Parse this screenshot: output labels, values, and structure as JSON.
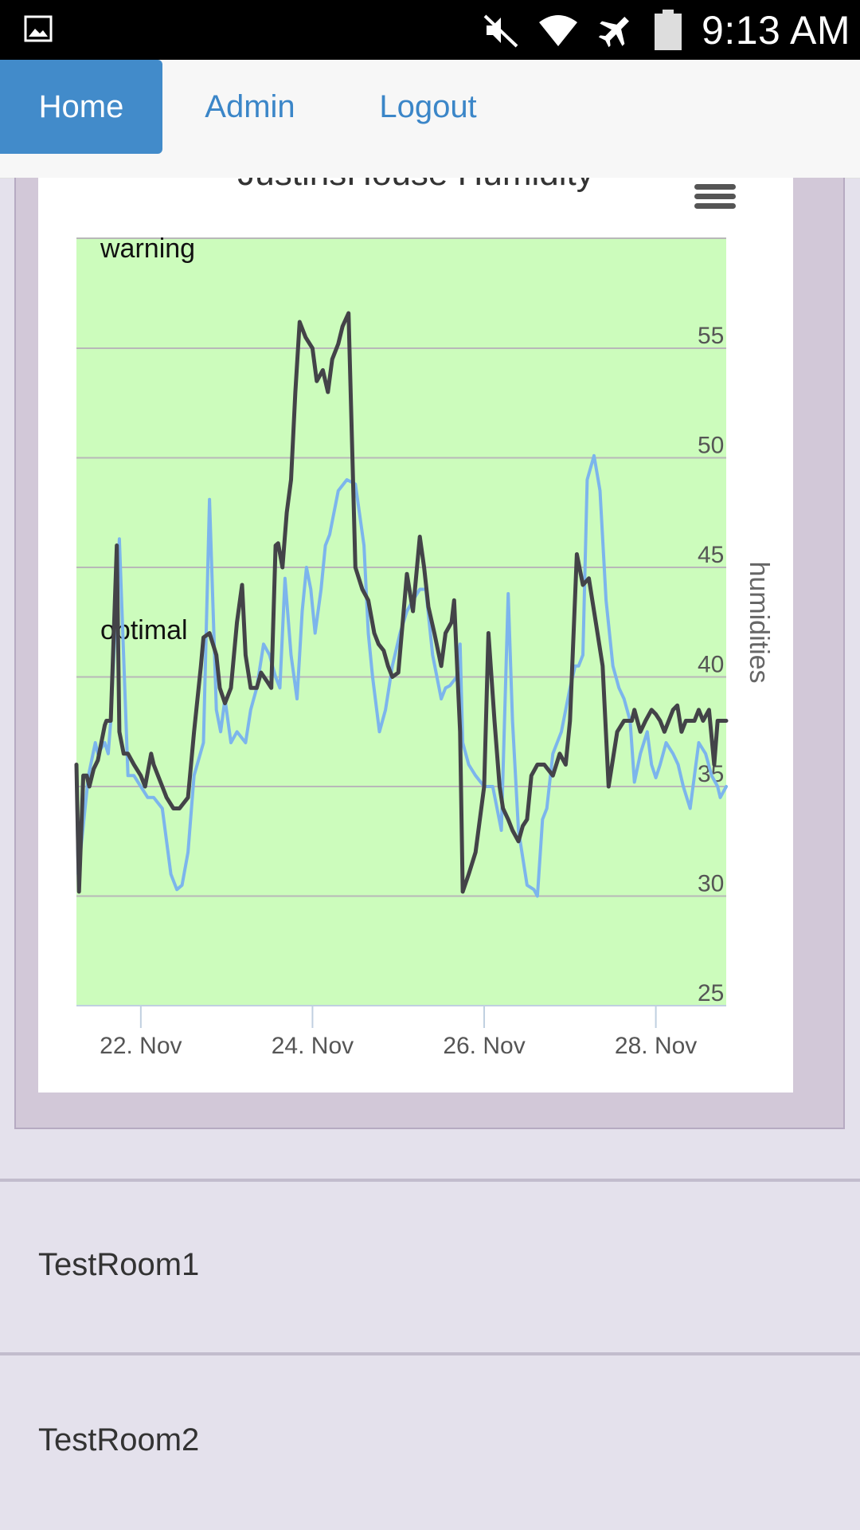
{
  "status_bar": {
    "time": "9:13 AM",
    "icons": [
      "gallery-icon",
      "mute-icon",
      "wifi-icon",
      "airplane-icon",
      "battery-icon"
    ]
  },
  "nav": {
    "items": [
      {
        "label": "Home",
        "active": true
      },
      {
        "label": "Admin",
        "active": false
      },
      {
        "label": "Logout",
        "active": false
      }
    ]
  },
  "chart": {
    "title": "JustinsHouse Humidity",
    "menu_icon": "hamburger-icon"
  },
  "chart_data": {
    "type": "line",
    "title": "JustinsHouse Humidity",
    "ylabel": "humidities",
    "ylim": [
      25,
      59
    ],
    "y_ticks": [
      "55",
      "50",
      "45",
      "40",
      "35",
      "30",
      "25"
    ],
    "x_ticks": [
      "22. Nov",
      "24. Nov",
      "26. Nov",
      "28. Nov"
    ],
    "xlim": [
      21.25,
      28.82
    ],
    "plot_bands": [
      {
        "label": "optimal",
        "from": 25,
        "to": 59,
        "color": "#ccfcbc"
      }
    ],
    "plot_band_labels": [
      "warning",
      "optimal"
    ],
    "grid": true,
    "series": [
      {
        "color": "#7cb5ec",
        "x": [
          21.25,
          21.27,
          21.35,
          21.39,
          21.47,
          21.5,
          21.58,
          21.62,
          21.65,
          21.75,
          21.85,
          21.92,
          22.0,
          22.08,
          22.15,
          22.25,
          22.35,
          22.42,
          22.48,
          22.55,
          22.62,
          22.73,
          22.8,
          22.88,
          22.93,
          22.98,
          23.05,
          23.12,
          23.22,
          23.28,
          23.35,
          23.43,
          23.5,
          23.57,
          23.62,
          23.68,
          23.75,
          23.82,
          23.88,
          23.93,
          23.98,
          24.03,
          24.1,
          24.15,
          24.2,
          24.25,
          24.3,
          24.4,
          24.5,
          24.6,
          24.65,
          24.7,
          24.78,
          24.85,
          24.93,
          25.02,
          25.1,
          25.17,
          25.25,
          25.32,
          25.4,
          25.5,
          25.55,
          25.6,
          25.68,
          25.72,
          25.75,
          25.82,
          25.9,
          26.0,
          26.1,
          26.2,
          26.28,
          26.33,
          26.4,
          26.5,
          26.58,
          26.62,
          26.68,
          26.73,
          26.8,
          26.9,
          27.0,
          27.06,
          27.1,
          27.15,
          27.2,
          27.28,
          27.35,
          27.42,
          27.5,
          27.57,
          27.63,
          27.7,
          27.75,
          27.82,
          27.86,
          27.9,
          27.95,
          28.0,
          28.05,
          28.12,
          28.2,
          28.26,
          28.32,
          28.4,
          28.45,
          28.5,
          28.58,
          28.65,
          28.72,
          28.75,
          28.82
        ],
        "y": [
          36,
          31,
          34,
          35.5,
          37,
          36.5,
          37,
          36.5,
          38,
          46.3,
          35.5,
          35.5,
          35,
          34.5,
          34.5,
          34,
          31,
          30.3,
          30.5,
          32,
          35.5,
          37,
          48.1,
          38.5,
          37.5,
          39,
          37,
          37.5,
          37,
          38.5,
          39.5,
          41.5,
          41,
          40,
          39.5,
          44.5,
          41,
          39,
          43,
          45,
          44,
          42,
          44,
          46,
          46.5,
          47.5,
          48.5,
          49,
          48.8,
          46,
          42,
          40,
          37.5,
          38.5,
          40.5,
          42,
          43,
          43.5,
          44,
          44,
          41,
          39,
          39.5,
          39.6,
          40,
          41.5,
          37,
          36,
          35.5,
          35,
          35,
          33,
          43.8,
          38,
          33,
          30.5,
          30.3,
          30,
          33.5,
          34,
          36.5,
          37.5,
          39.5,
          40.5,
          40.5,
          41,
          49,
          50.1,
          48.5,
          43.5,
          40.5,
          39.5,
          39,
          38,
          35.2,
          36.5,
          37,
          37.5,
          36,
          35.4,
          36,
          37,
          36.5,
          36,
          35,
          34,
          35.5,
          37,
          36.5,
          35.5,
          35,
          34.5,
          35
        ]
      },
      {
        "color": "#434348",
        "x": [
          21.25,
          21.28,
          21.33,
          21.37,
          21.4,
          21.45,
          21.5,
          21.58,
          21.6,
          21.65,
          21.72,
          21.75,
          21.8,
          21.85,
          21.92,
          22.0,
          22.05,
          22.12,
          22.15,
          22.2,
          22.25,
          22.3,
          22.38,
          22.45,
          22.55,
          22.62,
          22.7,
          22.73,
          22.8,
          22.88,
          22.92,
          22.98,
          23.05,
          23.12,
          23.18,
          23.22,
          23.28,
          23.35,
          23.4,
          23.47,
          23.52,
          23.57,
          23.6,
          23.65,
          23.7,
          23.75,
          23.8,
          23.85,
          23.92,
          24.0,
          24.05,
          24.12,
          24.18,
          24.23,
          24.3,
          24.35,
          24.42,
          24.5,
          24.58,
          24.65,
          24.72,
          24.77,
          24.83,
          24.88,
          24.93,
          25.0,
          25.1,
          25.17,
          25.25,
          25.3,
          25.35,
          25.42,
          25.5,
          25.55,
          25.62,
          25.65,
          25.72,
          25.75,
          25.82,
          25.9,
          26.0,
          26.05,
          26.12,
          26.18,
          26.22,
          26.28,
          26.33,
          26.4,
          26.45,
          26.5,
          26.55,
          26.62,
          26.7,
          26.8,
          26.88,
          26.95,
          27.0,
          27.08,
          27.15,
          27.22,
          27.3,
          27.38,
          27.45,
          27.55,
          27.63,
          27.72,
          27.75,
          27.82,
          27.88,
          27.95,
          28.0,
          28.05,
          28.1,
          28.2,
          28.25,
          28.3,
          28.35,
          28.45,
          28.5,
          28.55,
          28.62,
          28.68,
          28.72,
          28.78,
          28.82
        ],
        "y": [
          36,
          30.2,
          35.5,
          35.5,
          35,
          35.8,
          36.2,
          37.8,
          38,
          38,
          46,
          37.5,
          36.5,
          36.5,
          36,
          35.5,
          35,
          36.5,
          36,
          35.5,
          35,
          34.5,
          34,
          34,
          34.5,
          37.5,
          40.5,
          41.8,
          42,
          41,
          39.5,
          38.8,
          39.5,
          42.5,
          44.2,
          41,
          39.5,
          39.5,
          40.2,
          39.8,
          39.5,
          46,
          46.1,
          45,
          47.5,
          49,
          53,
          56.2,
          55.5,
          55,
          53.5,
          54,
          53,
          54.5,
          55.2,
          56,
          56.6,
          45,
          44,
          43.5,
          42,
          41.5,
          41.2,
          40.5,
          40,
          40.2,
          44.7,
          43,
          46.4,
          45,
          43.2,
          42,
          40.5,
          42,
          42.5,
          43.5,
          37.5,
          30.2,
          31,
          32,
          35,
          42,
          38,
          35,
          34,
          33.5,
          33,
          32.5,
          33.2,
          33.5,
          35.5,
          36,
          36,
          35.5,
          36.5,
          36,
          38,
          45.6,
          44.2,
          44.5,
          42.5,
          40.5,
          35,
          37.5,
          38,
          38,
          38.5,
          37.5,
          38,
          38.5,
          38.3,
          38,
          37.5,
          38.5,
          38.7,
          37.5,
          38,
          38,
          38.5,
          38,
          38.5,
          36,
          38,
          38,
          38
        ]
      }
    ]
  },
  "rooms": [
    {
      "label": "TestRoom1"
    },
    {
      "label": "TestRoom2"
    }
  ]
}
